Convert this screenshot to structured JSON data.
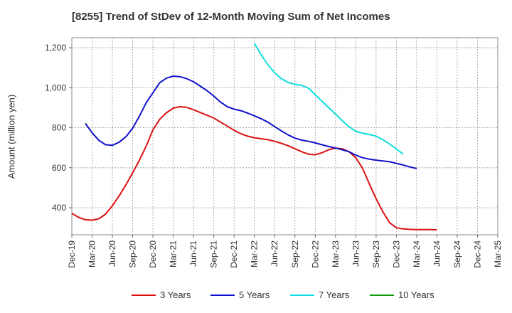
{
  "chart_data": {
    "type": "line",
    "title": "[8255]  Trend of StDev of 12-Month Moving Sum of Net Incomes",
    "ylabel": "Amount (million yen)",
    "xlabel": "",
    "x_ticks": [
      "Dec-19",
      "Mar-20",
      "Jun-20",
      "Sep-20",
      "Dec-20",
      "Mar-21",
      "Jun-21",
      "Sep-21",
      "Dec-21",
      "Mar-22",
      "Jun-22",
      "Sep-22",
      "Dec-22",
      "Mar-23",
      "Jun-23",
      "Sep-23",
      "Dec-23",
      "Mar-24",
      "Jun-24",
      "Sep-24",
      "Dec-24",
      "Mar-25"
    ],
    "y_ticks": [
      400,
      600,
      800,
      1000,
      1200
    ],
    "ylim": [
      265,
      1250
    ],
    "grid": true,
    "legend_position": "bottom",
    "series": [
      {
        "name": "3 Years",
        "color": "#dd1111",
        "start_month": "Dec-19",
        "values": [
          372,
          352,
          340,
          338,
          345,
          368,
          410,
          460,
          515,
          575,
          638,
          708,
          790,
          842,
          875,
          898,
          905,
          902,
          890,
          876,
          862,
          848,
          828,
          808,
          787,
          770,
          758,
          750,
          745,
          740,
          732,
          722,
          710,
          695,
          680,
          668,
          665,
          675,
          690,
          698,
          695,
          680,
          650,
          598,
          520,
          445,
          380,
          325,
          300,
          294,
          292,
          291,
          291,
          291,
          290
        ]
      },
      {
        "name": "5 Years",
        "color": "#1111cc",
        "start_month": "Dec-19",
        "values": [
          null,
          null,
          822,
          775,
          737,
          715,
          712,
          728,
          755,
          798,
          858,
          925,
          975,
          1025,
          1048,
          1058,
          1055,
          1045,
          1030,
          1008,
          985,
          958,
          928,
          905,
          893,
          885,
          873,
          860,
          845,
          828,
          806,
          784,
          764,
          748,
          738,
          732,
          724,
          715,
          706,
          698,
          690,
          680,
          663,
          650,
          643,
          638,
          634,
          630,
          622,
          614,
          604,
          596
        ]
      },
      {
        "name": "7 Years",
        "color": "#11dddd",
        "start_month": "Mar-22",
        "values": [
          1222,
          1165,
          1115,
          1075,
          1045,
          1026,
          1017,
          1012,
          998,
          965,
          932,
          900,
          868,
          835,
          805,
          782,
          773,
          766,
          758,
          740,
          718,
          694,
          668
        ]
      },
      {
        "name": "10 Years",
        "color": "#119911",
        "start_month": "Dec-19",
        "values": []
      }
    ]
  }
}
